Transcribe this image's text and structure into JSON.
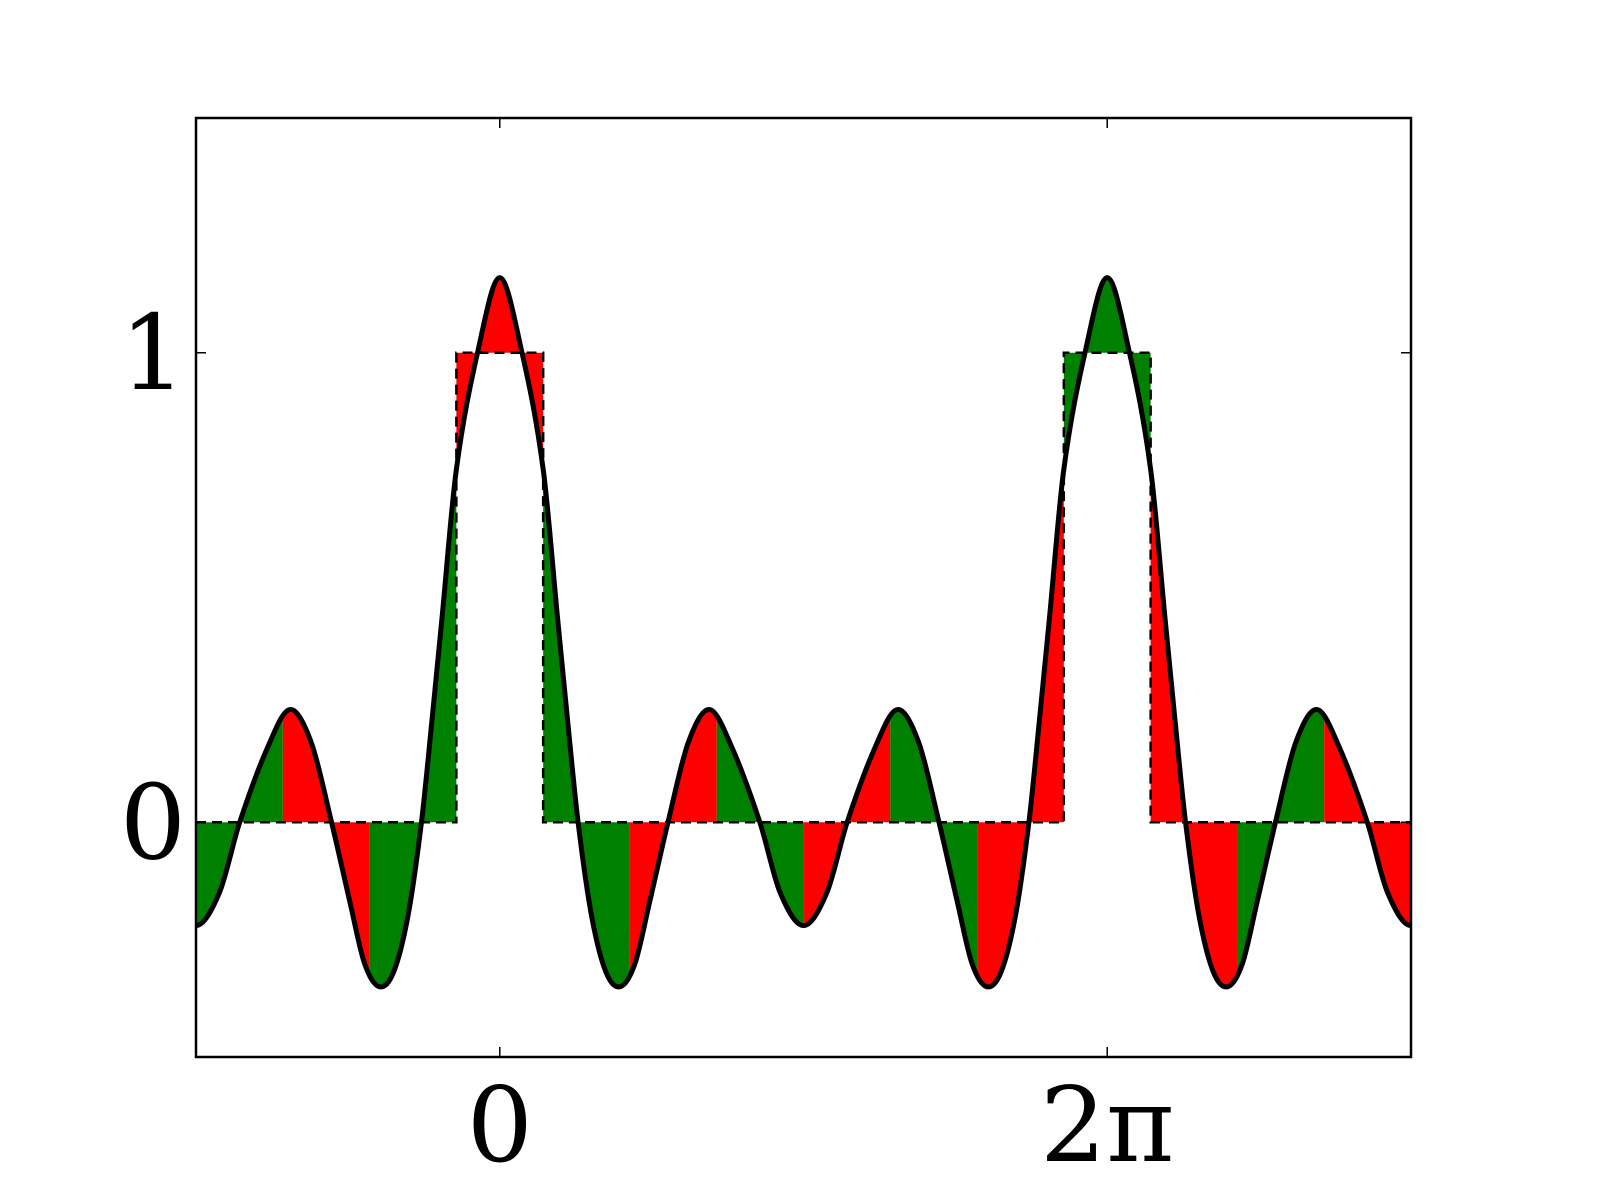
{
  "chart_data": {
    "type": "line",
    "x": [
      -3.142,
      -2.9,
      -2.69,
      -2.4,
      -2.17,
      -1.95,
      -1.74,
      -1.55,
      -1.4,
      -1.25,
      -1.1,
      -0.95,
      -0.81,
      -0.7,
      -0.6,
      -0.45,
      -0.23,
      0,
      0.23,
      0.45,
      0.6,
      0.7,
      0.81,
      0.95,
      1.1,
      1.25,
      1.4,
      1.55,
      1.74,
      1.95,
      2.17,
      2.4,
      2.69,
      2.9,
      3.142,
      3.383,
      3.593,
      3.883,
      4.113,
      4.333,
      4.543,
      4.733,
      4.883,
      5.033,
      5.183,
      5.333,
      5.473,
      5.583,
      5.683,
      5.833,
      6.053,
      6.283,
      6.513,
      6.733,
      6.883,
      6.983,
      7.093,
      7.233,
      7.383,
      7.533,
      7.683,
      7.833,
      8.023,
      8.233,
      8.453,
      8.683,
      8.973,
      9.183,
      9.425
    ],
    "series": [
      {
        "color": "#000000",
        "values": [
          -0.22,
          -0.15,
          0,
          0.16,
          0.24,
          0.17,
          0,
          -0.17,
          -0.3,
          -0.35,
          -0.32,
          -0.2,
          0,
          0.22,
          0.43,
          0.75,
          1.0,
          1.16,
          1.0,
          0.75,
          0.43,
          0.22,
          0,
          -0.2,
          -0.32,
          -0.35,
          -0.3,
          -0.17,
          0,
          0.17,
          0.24,
          0.16,
          0,
          -0.15,
          -0.22,
          -0.15,
          0,
          0.16,
          0.24,
          0.17,
          0,
          -0.17,
          -0.3,
          -0.35,
          -0.32,
          -0.2,
          0,
          0.22,
          0.43,
          0.75,
          1.0,
          1.16,
          1.0,
          0.75,
          0.43,
          0.22,
          0,
          -0.2,
          -0.32,
          -0.35,
          -0.3,
          -0.17,
          0,
          0.17,
          0.24,
          0.16,
          0,
          -0.15,
          -0.22
        ]
      }
    ],
    "pulse": {
      "color": "#000000",
      "dashed": true,
      "x": [
        -3.142,
        -0.449,
        -0.449,
        0.449,
        0.449,
        5.834,
        5.834,
        6.732,
        6.732,
        9.425
      ],
      "values": [
        0,
        0,
        1,
        1,
        0,
        0,
        1,
        1,
        0,
        0
      ]
    },
    "fill_breaks": [
      -3.142,
      -2.244,
      -1.346,
      -0.449,
      0.449,
      1.346,
      2.244,
      3.142,
      4.039,
      4.937,
      5.834,
      6.732,
      7.63,
      8.527,
      9.425
    ],
    "fill_colors": [
      "#008000",
      "#ff0000"
    ],
    "xlim": [
      -3.142,
      9.425
    ],
    "ylim": [
      -0.5,
      1.5
    ],
    "xticks": [
      0,
      {
        "value": 6.283,
        "label": "2π"
      }
    ],
    "yticks": [
      0,
      1
    ]
  }
}
